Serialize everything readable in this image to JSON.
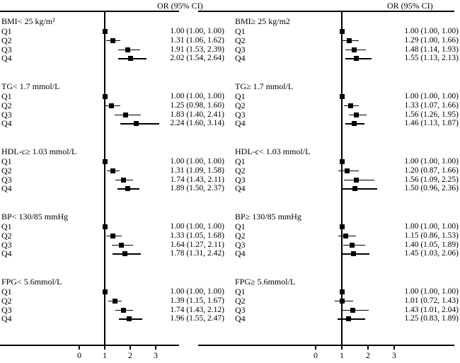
{
  "chart_data": {
    "type": "scatter",
    "subtype": "forest-plot",
    "xlabel": "",
    "ylabel": "",
    "x_ticks": [
      0,
      1,
      2,
      3
    ],
    "xlim": [
      -3.1,
      3.9
    ],
    "reference_value": 1,
    "grid": false,
    "panels": [
      {
        "name": "left",
        "or_header": "OR (95% CI)",
        "groups": [
          {
            "label": "BMI< 25 kg/m²",
            "rows": [
              {
                "q": "Q1",
                "or": 1.0,
                "lo": 1.0,
                "hi": 1.0,
                "text": "1.00 (1.00, 1.00)"
              },
              {
                "q": "Q2",
                "or": 1.31,
                "lo": 1.06,
                "hi": 1.62,
                "text": "1.31 (1.06, 1.62)"
              },
              {
                "q": "Q3",
                "or": 1.91,
                "lo": 1.53,
                "hi": 2.39,
                "text": "1.91 (1.53, 2.39)"
              },
              {
                "q": "Q4",
                "or": 2.02,
                "lo": 1.54,
                "hi": 2.64,
                "text": "2.02 (1.54, 2.64)"
              }
            ]
          },
          {
            "label": "TG< 1.7 mmol/L",
            "rows": [
              {
                "q": "Q1",
                "or": 1.0,
                "lo": 1.0,
                "hi": 1.0,
                "text": "1.00 (1.00, 1.00)"
              },
              {
                "q": "Q2",
                "or": 1.25,
                "lo": 0.98,
                "hi": 1.6,
                "text": "1.25 (0.98, 1.60)"
              },
              {
                "q": "Q3",
                "or": 1.83,
                "lo": 1.4,
                "hi": 2.41,
                "text": "1.83 (1.40, 2.41)"
              },
              {
                "q": "Q4",
                "or": 2.24,
                "lo": 1.6,
                "hi": 3.14,
                "text": "2.24 (1.60, 3.14)"
              }
            ]
          },
          {
            "label": "HDL-c≥ 1.03 mmol/L",
            "rows": [
              {
                "q": "Q1",
                "or": 1.0,
                "lo": 1.0,
                "hi": 1.0,
                "text": "1.00 (1.00, 1.00)"
              },
              {
                "q": "Q2",
                "or": 1.31,
                "lo": 1.09,
                "hi": 1.58,
                "text": "1.31 (1.09, 1.58)"
              },
              {
                "q": "Q3",
                "or": 1.74,
                "lo": 1.43,
                "hi": 2.11,
                "text": "1.74 (1.43, 2.11)"
              },
              {
                "q": "Q4",
                "or": 1.89,
                "lo": 1.5,
                "hi": 2.37,
                "text": "1.89 (1.50, 2.37)"
              }
            ]
          },
          {
            "label": "BP< 130/85 mmHg",
            "rows": [
              {
                "q": "Q1",
                "or": 1.0,
                "lo": 1.0,
                "hi": 1.0,
                "text": "1.00 (1.00, 1.00)"
              },
              {
                "q": "Q2",
                "or": 1.33,
                "lo": 1.05,
                "hi": 1.68,
                "text": "1.33 (1.05, 1.68)"
              },
              {
                "q": "Q3",
                "or": 1.64,
                "lo": 1.27,
                "hi": 2.11,
                "text": "1.64 (1.27, 2.11)"
              },
              {
                "q": "Q4",
                "or": 1.78,
                "lo": 1.31,
                "hi": 2.42,
                "text": "1.78 (1.31, 2.42)"
              }
            ]
          },
          {
            "label": "FPG< 5.6mmol/L",
            "rows": [
              {
                "q": "Q1",
                "or": 1.0,
                "lo": 1.0,
                "hi": 1.0,
                "text": "1.00 (1.00, 1.00)"
              },
              {
                "q": "Q2",
                "or": 1.39,
                "lo": 1.15,
                "hi": 1.67,
                "text": "1.39 (1.15, 1.67)"
              },
              {
                "q": "Q3",
                "or": 1.74,
                "lo": 1.43,
                "hi": 2.12,
                "text": "1.74 (1.43, 2.12)"
              },
              {
                "q": "Q4",
                "or": 1.96,
                "lo": 1.55,
                "hi": 2.47,
                "text": "1.96 (1.55, 2.47)"
              }
            ]
          }
        ]
      },
      {
        "name": "right",
        "or_header": "OR (95% CI)",
        "groups": [
          {
            "label": "BMI≥ 25 kg/m2",
            "rows": [
              {
                "q": "Q1",
                "or": 1.0,
                "lo": 1.0,
                "hi": 1.0,
                "text": "1.00 (1.00, 1.00)"
              },
              {
                "q": "Q2",
                "or": 1.29,
                "lo": 1.0,
                "hi": 1.66,
                "text": "1.29 (1.00, 1.66)"
              },
              {
                "q": "Q3",
                "or": 1.48,
                "lo": 1.14,
                "hi": 1.93,
                "text": "1.48 (1.14, 1.93)"
              },
              {
                "q": "Q4",
                "or": 1.55,
                "lo": 1.13,
                "hi": 2.13,
                "text": "1.55 (1.13, 2.13)"
              }
            ]
          },
          {
            "label": "TG≥ 1.7 mmol/L",
            "rows": [
              {
                "q": "Q1",
                "or": 1.0,
                "lo": 1.0,
                "hi": 1.0,
                "text": "1.00 (1.00, 1.00)"
              },
              {
                "q": "Q2",
                "or": 1.33,
                "lo": 1.07,
                "hi": 1.66,
                "text": "1.33 (1.07, 1.66)"
              },
              {
                "q": "Q3",
                "or": 1.56,
                "lo": 1.26,
                "hi": 1.95,
                "text": "1.56 (1.26, 1.95)"
              },
              {
                "q": "Q4",
                "or": 1.46,
                "lo": 1.13,
                "hi": 1.87,
                "text": "1.46 (1.13, 1.87)"
              }
            ]
          },
          {
            "label": "HDL-c< 1.03 mmol/L",
            "rows": [
              {
                "q": "Q1",
                "or": 1.0,
                "lo": 1.0,
                "hi": 1.0,
                "text": "1.00 (1.00, 1.00)"
              },
              {
                "q": "Q2",
                "or": 1.2,
                "lo": 0.87,
                "hi": 1.66,
                "text": "1.20 (0.87, 1.66)"
              },
              {
                "q": "Q3",
                "or": 1.56,
                "lo": 1.09,
                "hi": 2.25,
                "text": "1.56 (1.09, 2.25)"
              },
              {
                "q": "Q4",
                "or": 1.5,
                "lo": 0.96,
                "hi": 2.36,
                "text": "1.50 (0.96, 2.36)"
              }
            ]
          },
          {
            "label": "BP≥ 130/85 mmHg",
            "rows": [
              {
                "q": "Q1",
                "or": 1.0,
                "lo": 1.0,
                "hi": 1.0,
                "text": "1.00 (1.00, 1.00)"
              },
              {
                "q": "Q2",
                "or": 1.15,
                "lo": 0.86,
                "hi": 1.53,
                "text": "1.15 (0.86, 1.53)"
              },
              {
                "q": "Q3",
                "or": 1.4,
                "lo": 1.05,
                "hi": 1.89,
                "text": "1.40 (1.05, 1.89)"
              },
              {
                "q": "Q4",
                "or": 1.45,
                "lo": 1.03,
                "hi": 2.06,
                "text": "1.45 (1.03, 2.06)"
              }
            ]
          },
          {
            "label": "FPG≥ 5.6mmol/L",
            "rows": [
              {
                "q": "Q1",
                "or": 1.0,
                "lo": 1.0,
                "hi": 1.0,
                "text": "1.00 (1.00, 1.00)"
              },
              {
                "q": "Q2",
                "or": 1.01,
                "lo": 0.72,
                "hi": 1.43,
                "text": "1.01 (0.72, 1.43)"
              },
              {
                "q": "Q3",
                "or": 1.43,
                "lo": 1.01,
                "hi": 2.04,
                "text": "1.43 (1.01, 2.04)"
              },
              {
                "q": "Q4",
                "or": 1.25,
                "lo": 0.83,
                "hi": 1.89,
                "text": "1.25 (0.83, 1.89)"
              }
            ]
          }
        ]
      }
    ]
  },
  "colors": {
    "foreground": "#000000",
    "background": "#ffffff"
  }
}
